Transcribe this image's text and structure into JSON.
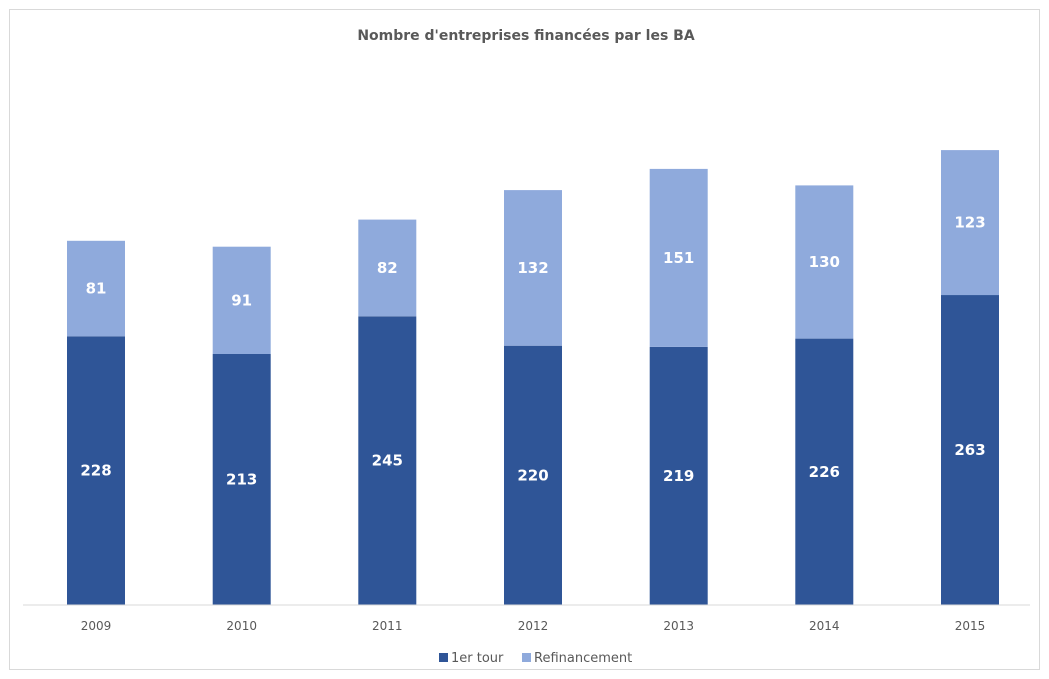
{
  "chart_data": {
    "type": "bar",
    "stacked": true,
    "title": "Nombre d'entreprises financées par les BA",
    "categories": [
      "2009",
      "2010",
      "2011",
      "2012",
      "2013",
      "2014",
      "2015"
    ],
    "series": [
      {
        "name": "1er tour",
        "values": [
          228,
          213,
          245,
          220,
          219,
          226,
          263
        ],
        "color": "#2f5597"
      },
      {
        "name": "Refinancement",
        "values": [
          81,
          91,
          82,
          132,
          151,
          130,
          123
        ],
        "color": "#8faadc"
      }
    ],
    "ylim": [
      0,
      420
    ],
    "grid": false,
    "legend_position": "bottom"
  }
}
